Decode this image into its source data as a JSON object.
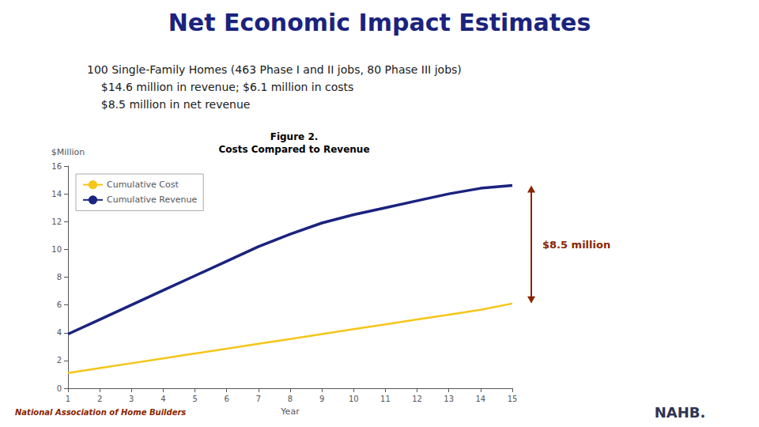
{
  "chart_data": {
    "type": "line",
    "title": "Net Economic Impact Estimates",
    "title_color": "#1a237e",
    "subtitle": [
      "100 Single-Family Homes (463 Phase I and II jobs, 80 Phase III jobs)",
      "    $14.6 million in revenue; $6.1 million in costs",
      "    $8.5 million in net revenue"
    ],
    "chart_title": [
      "Figure 2.",
      "Costs Compared to Revenue"
    ],
    "xlabel": "Year",
    "ylabel": "$Million",
    "x": [
      1,
      2,
      3,
      4,
      5,
      6,
      7,
      8,
      9,
      10,
      11,
      12,
      13,
      14,
      15
    ],
    "series": [
      {
        "name": "Cumulative Cost",
        "color": "#F5C518",
        "values": [
          1.1,
          1.45,
          1.8,
          2.15,
          2.5,
          2.85,
          3.2,
          3.55,
          3.9,
          4.25,
          4.6,
          4.95,
          5.3,
          5.65,
          6.1
        ]
      },
      {
        "name": "Cumulative Revenue",
        "color": "#1a237e",
        "values": [
          3.9,
          4.95,
          6.0,
          7.05,
          8.1,
          9.15,
          10.2,
          11.1,
          11.9,
          12.5,
          13.0,
          13.5,
          14.0,
          14.4,
          14.6
        ]
      }
    ],
    "xlim": [
      1,
      15
    ],
    "xticks": [
      1,
      2,
      3,
      4,
      5,
      6,
      7,
      8,
      9,
      10,
      11,
      12,
      13,
      14,
      15
    ],
    "ylim": [
      0,
      16
    ],
    "yticks": [
      0,
      2,
      4,
      6,
      8,
      10,
      12,
      14,
      16
    ],
    "grid": false,
    "legend": "upper left",
    "annotations": [
      {
        "text": "$8.5 million",
        "color": "#8B2500"
      },
      {
        "text": "National Association of Home Builders",
        "color": "#8B2500"
      },
      {
        "text": "NAHB.",
        "color": "#2e3552"
      }
    ]
  }
}
